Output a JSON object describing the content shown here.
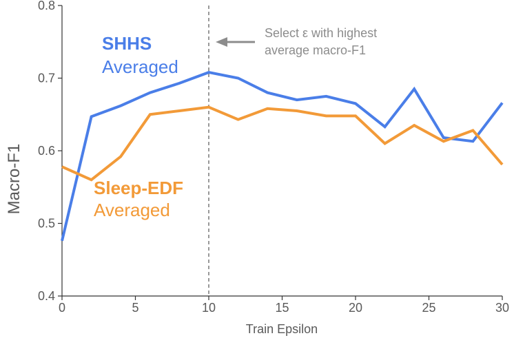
{
  "chart_data": {
    "type": "line",
    "xlabel": "Train Epsilon",
    "ylabel": "Macro-F1",
    "xlim": [
      0,
      30
    ],
    "ylim": [
      0.4,
      0.8
    ],
    "xticks": [
      "0",
      "5",
      "10",
      "15",
      "20",
      "25",
      "30"
    ],
    "yticks": [
      "0.4",
      "0.5",
      "0.6",
      "0.7",
      "0.8"
    ],
    "grid": false,
    "series": [
      {
        "key": "shhs",
        "color": "#4a7ee8",
        "label_bold": "SHHS",
        "label": "Averaged",
        "x": [
          0,
          2,
          4,
          6,
          8,
          10,
          12,
          14,
          16,
          18,
          20,
          22,
          24,
          26,
          28,
          30
        ],
        "values": [
          0.476,
          0.647,
          0.662,
          0.68,
          0.693,
          0.708,
          0.7,
          0.68,
          0.67,
          0.675,
          0.665,
          0.633,
          0.685,
          0.618,
          0.613,
          0.666
        ]
      },
      {
        "key": "sleepedf",
        "color": "#f29a38",
        "label_bold": "Sleep-EDF",
        "label": "Averaged",
        "x": [
          0,
          2,
          4,
          6,
          8,
          10,
          12,
          14,
          16,
          18,
          20,
          22,
          24,
          26,
          28,
          30
        ],
        "values": [
          0.578,
          0.56,
          0.592,
          0.65,
          0.655,
          0.66,
          0.643,
          0.658,
          0.655,
          0.648,
          0.648,
          0.61,
          0.635,
          0.613,
          0.628,
          0.581
        ]
      }
    ],
    "annotation": {
      "x": 10,
      "line_color": "#999999",
      "text_line1": "Select ε with highest",
      "text_line2": "average macro-F1"
    }
  }
}
